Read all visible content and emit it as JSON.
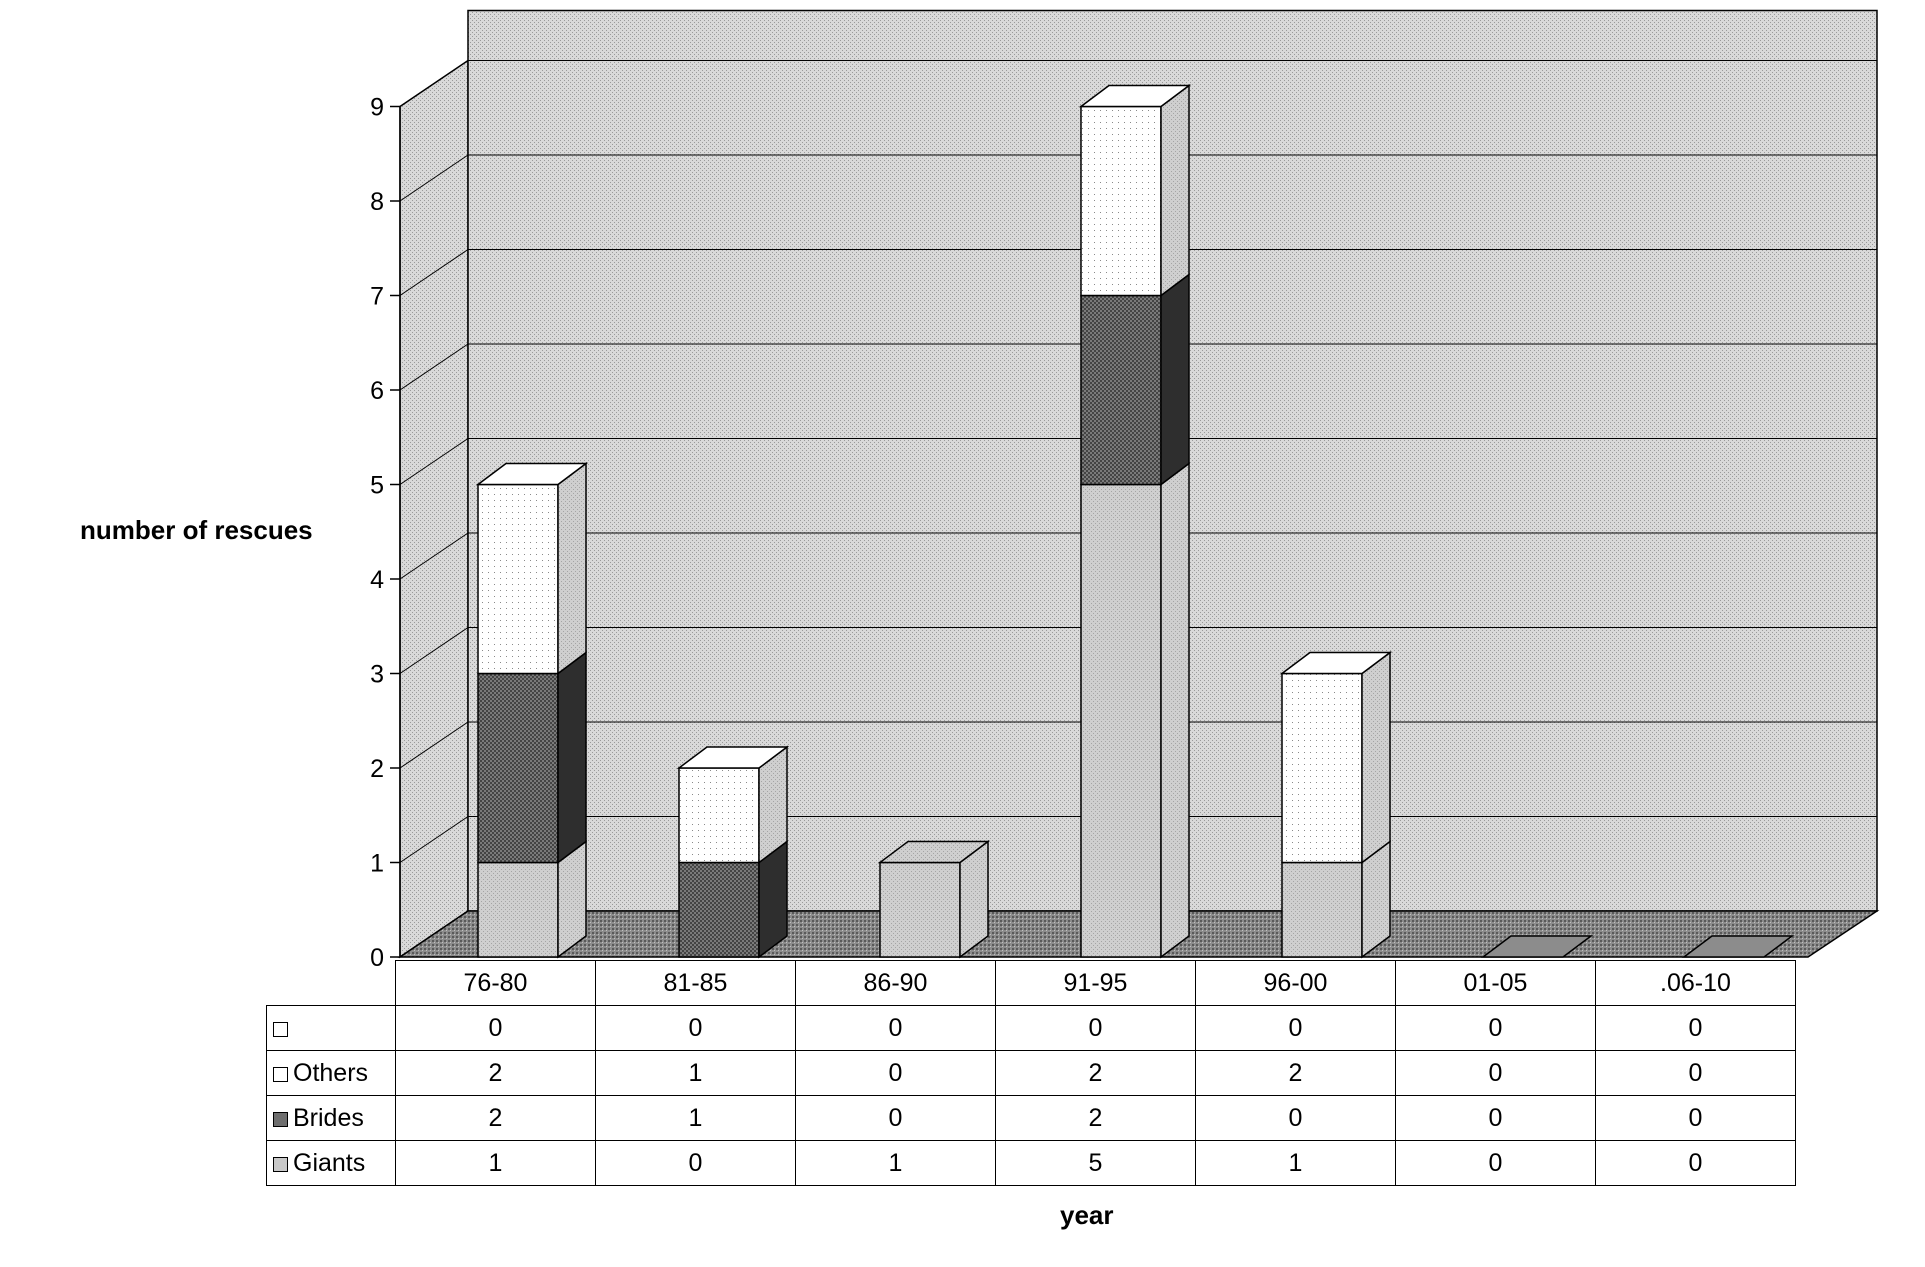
{
  "chart_data": {
    "type": "bar",
    "stacked": true,
    "three_d": true,
    "title": "",
    "xlabel": "year",
    "ylabel": "number of rescues",
    "ylim": [
      0,
      9
    ],
    "yticks": [
      "0",
      "1",
      "2",
      "3",
      "4",
      "5",
      "6",
      "7",
      "8",
      "9"
    ],
    "categories": [
      "76-80",
      "81-85",
      "86-90",
      "91-95",
      "96-00",
      "01-05",
      ".06-10"
    ],
    "series": [
      {
        "name": "Giants",
        "values": [
          1,
          0,
          1,
          5,
          1,
          0,
          0
        ],
        "fill": "#c8c8c8",
        "pattern": "light"
      },
      {
        "name": "Brides",
        "values": [
          2,
          1,
          0,
          2,
          0,
          0,
          0
        ],
        "fill": "#6e6e6e",
        "pattern": "dark"
      },
      {
        "name": "Others",
        "values": [
          2,
          1,
          0,
          2,
          2,
          0,
          0
        ],
        "fill": "#f4f4f4",
        "pattern": "dots"
      },
      {
        "name": "",
        "values": [
          0,
          0,
          0,
          0,
          0,
          0,
          0
        ],
        "fill": "#eeeeee",
        "pattern": "dots"
      }
    ],
    "table_row_order": [
      3,
      2,
      1,
      0
    ],
    "grid": true,
    "legend": "data-table"
  }
}
